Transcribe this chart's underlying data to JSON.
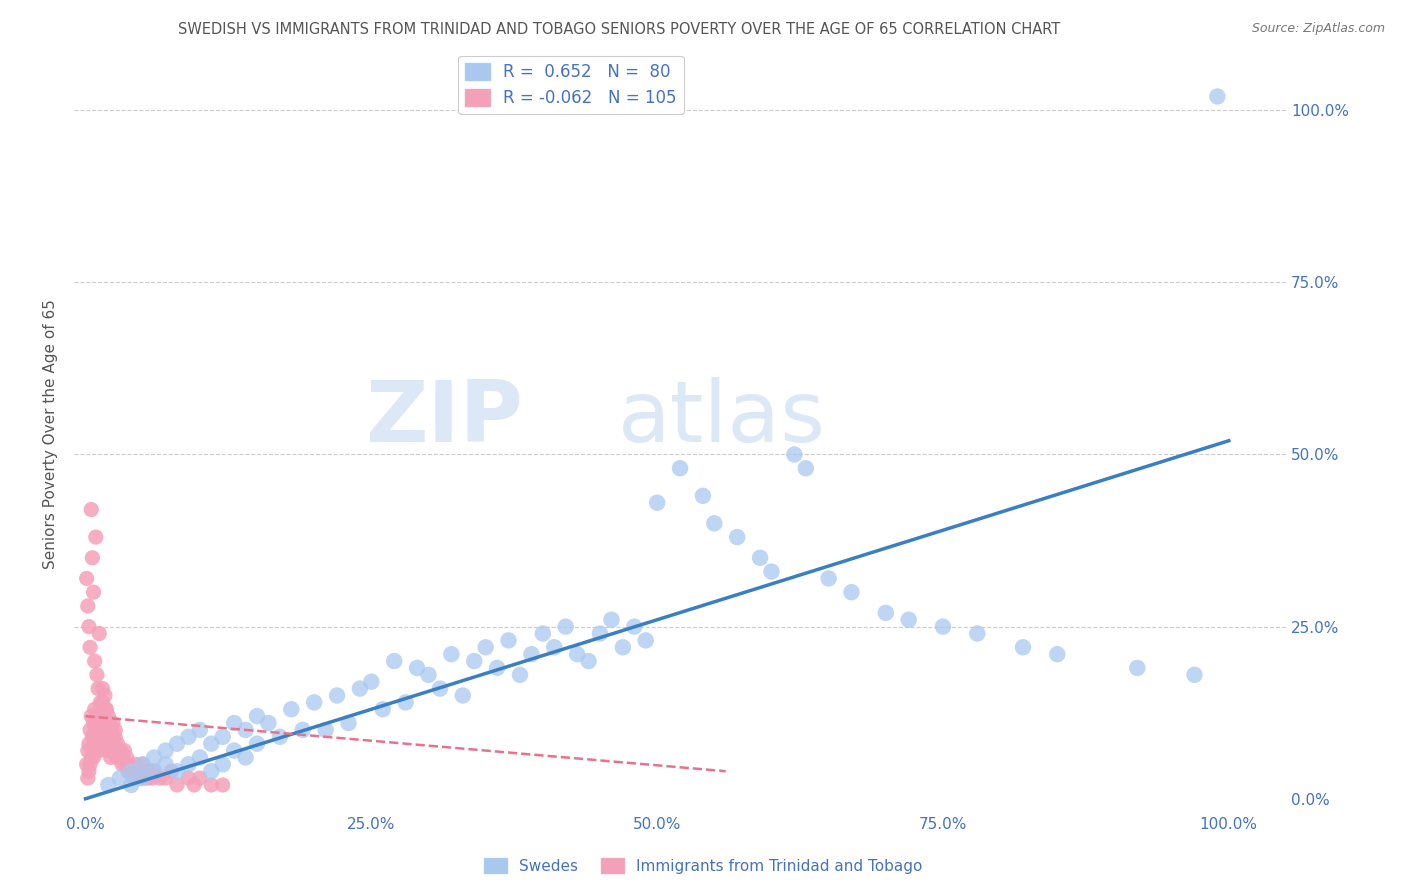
{
  "title": "SWEDISH VS IMMIGRANTS FROM TRINIDAD AND TOBAGO SENIORS POVERTY OVER THE AGE OF 65 CORRELATION CHART",
  "source": "Source: ZipAtlas.com",
  "ylabel": "Seniors Poverty Over the Age of 65",
  "blue_R": 0.652,
  "blue_N": 80,
  "pink_R": -0.062,
  "pink_N": 105,
  "legend_label_blue": "Swedes",
  "legend_label_pink": "Immigrants from Trinidad and Tobago",
  "blue_color": "#a8c8f0",
  "pink_color": "#f4a0b8",
  "blue_line_color": "#3a7fc1",
  "pink_line_color": "#e8728a",
  "title_color": "#555555",
  "axis_color": "#4472c4",
  "watermark_zip": "ZIP",
  "watermark_atlas": "atlas",
  "watermark_color": "#dce8f5",
  "background_color": "#ffffff",
  "grid_color": "#cccccc",
  "blue_x": [
    0.02,
    0.03,
    0.04,
    0.04,
    0.05,
    0.05,
    0.06,
    0.06,
    0.07,
    0.07,
    0.08,
    0.08,
    0.09,
    0.09,
    0.1,
    0.1,
    0.11,
    0.11,
    0.12,
    0.12,
    0.13,
    0.13,
    0.14,
    0.14,
    0.15,
    0.15,
    0.16,
    0.17,
    0.18,
    0.19,
    0.2,
    0.21,
    0.22,
    0.23,
    0.24,
    0.25,
    0.26,
    0.27,
    0.28,
    0.29,
    0.3,
    0.31,
    0.32,
    0.33,
    0.34,
    0.35,
    0.36,
    0.37,
    0.38,
    0.39,
    0.4,
    0.41,
    0.42,
    0.43,
    0.44,
    0.45,
    0.46,
    0.47,
    0.48,
    0.49,
    0.5,
    0.52,
    0.54,
    0.55,
    0.57,
    0.59,
    0.6,
    0.62,
    0.63,
    0.65,
    0.67,
    0.7,
    0.72,
    0.75,
    0.78,
    0.82,
    0.85,
    0.92,
    0.97,
    0.99
  ],
  "blue_y": [
    0.02,
    0.03,
    0.04,
    0.02,
    0.05,
    0.03,
    0.06,
    0.04,
    0.07,
    0.05,
    0.08,
    0.04,
    0.09,
    0.05,
    0.1,
    0.06,
    0.08,
    0.04,
    0.09,
    0.05,
    0.11,
    0.07,
    0.1,
    0.06,
    0.12,
    0.08,
    0.11,
    0.09,
    0.13,
    0.1,
    0.14,
    0.1,
    0.15,
    0.11,
    0.16,
    0.17,
    0.13,
    0.2,
    0.14,
    0.19,
    0.18,
    0.16,
    0.21,
    0.15,
    0.2,
    0.22,
    0.19,
    0.23,
    0.18,
    0.21,
    0.24,
    0.22,
    0.25,
    0.21,
    0.2,
    0.24,
    0.26,
    0.22,
    0.25,
    0.23,
    0.43,
    0.48,
    0.44,
    0.4,
    0.38,
    0.35,
    0.33,
    0.5,
    0.48,
    0.32,
    0.3,
    0.27,
    0.26,
    0.25,
    0.24,
    0.22,
    0.21,
    0.19,
    0.18,
    1.02
  ],
  "pink_x": [
    0.001,
    0.002,
    0.002,
    0.003,
    0.003,
    0.004,
    0.004,
    0.005,
    0.005,
    0.006,
    0.006,
    0.007,
    0.007,
    0.008,
    0.008,
    0.009,
    0.009,
    0.01,
    0.01,
    0.011,
    0.011,
    0.012,
    0.012,
    0.013,
    0.013,
    0.014,
    0.014,
    0.015,
    0.015,
    0.016,
    0.016,
    0.017,
    0.017,
    0.018,
    0.018,
    0.019,
    0.019,
    0.02,
    0.02,
    0.021,
    0.021,
    0.022,
    0.022,
    0.023,
    0.023,
    0.024,
    0.024,
    0.025,
    0.025,
    0.026,
    0.026,
    0.027,
    0.028,
    0.029,
    0.03,
    0.031,
    0.032,
    0.033,
    0.034,
    0.035,
    0.036,
    0.037,
    0.038,
    0.04,
    0.042,
    0.044,
    0.046,
    0.048,
    0.05,
    0.052,
    0.054,
    0.056,
    0.058,
    0.06,
    0.065,
    0.07,
    0.075,
    0.08,
    0.09,
    0.095,
    0.1,
    0.11,
    0.12,
    0.001,
    0.002,
    0.003,
    0.004,
    0.005,
    0.006,
    0.007,
    0.008,
    0.009,
    0.01,
    0.011,
    0.012,
    0.013,
    0.014,
    0.015,
    0.016,
    0.017,
    0.018,
    0.019,
    0.02,
    0.021,
    0.022
  ],
  "pink_y": [
    0.05,
    0.03,
    0.07,
    0.04,
    0.08,
    0.05,
    0.1,
    0.06,
    0.12,
    0.07,
    0.09,
    0.06,
    0.11,
    0.08,
    0.13,
    0.07,
    0.1,
    0.09,
    0.12,
    0.08,
    0.11,
    0.07,
    0.1,
    0.09,
    0.13,
    0.08,
    0.11,
    0.1,
    0.14,
    0.09,
    0.12,
    0.08,
    0.11,
    0.09,
    0.13,
    0.07,
    0.1,
    0.08,
    0.12,
    0.09,
    0.11,
    0.06,
    0.08,
    0.07,
    0.1,
    0.09,
    0.11,
    0.08,
    0.07,
    0.09,
    0.1,
    0.06,
    0.08,
    0.07,
    0.06,
    0.07,
    0.05,
    0.06,
    0.07,
    0.05,
    0.06,
    0.04,
    0.05,
    0.04,
    0.03,
    0.05,
    0.04,
    0.03,
    0.05,
    0.04,
    0.03,
    0.04,
    0.03,
    0.04,
    0.03,
    0.03,
    0.04,
    0.02,
    0.03,
    0.02,
    0.03,
    0.02,
    0.02,
    0.32,
    0.28,
    0.25,
    0.22,
    0.42,
    0.35,
    0.3,
    0.2,
    0.38,
    0.18,
    0.16,
    0.24,
    0.14,
    0.12,
    0.16,
    0.1,
    0.15,
    0.13,
    0.11,
    0.09,
    0.08,
    0.07
  ]
}
